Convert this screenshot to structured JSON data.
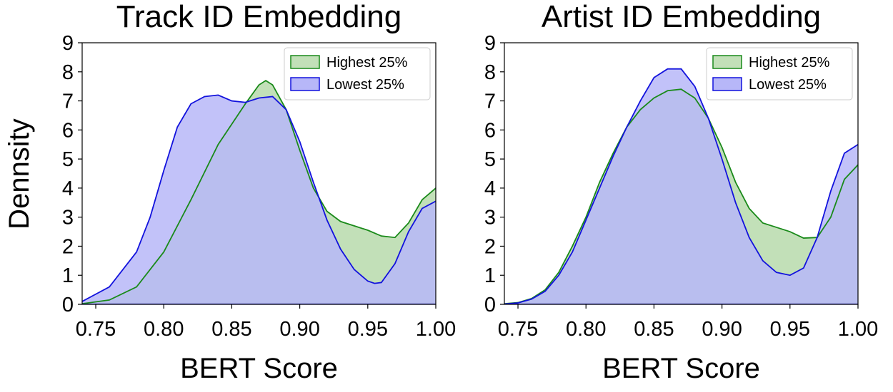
{
  "figure": {
    "ylabel": "Dennsity"
  },
  "chart_data": [
    {
      "type": "area",
      "title": "Track ID Embedding",
      "xlabel": "BERT Score",
      "ylabel": "Dennsity",
      "xlim": [
        0.74,
        1.0
      ],
      "ylim": [
        0,
        9
      ],
      "xticks": [
        "0.75",
        "0.80",
        "0.85",
        "0.90",
        "0.95",
        "1.00"
      ],
      "yticks": [
        "0",
        "1",
        "2",
        "3",
        "4",
        "5",
        "6",
        "7",
        "8",
        "9"
      ],
      "legend_position": "top-right",
      "grid": false,
      "series": [
        {
          "name": "Highest 25%",
          "fill": "#c2e0b8",
          "stroke": "#1a8a1a",
          "x": [
            0.74,
            0.76,
            0.78,
            0.8,
            0.82,
            0.84,
            0.86,
            0.87,
            0.875,
            0.88,
            0.89,
            0.9,
            0.91,
            0.92,
            0.93,
            0.94,
            0.95,
            0.96,
            0.97,
            0.98,
            0.99,
            1.0
          ],
          "y": [
            0.02,
            0.15,
            0.6,
            1.8,
            3.6,
            5.5,
            6.9,
            7.55,
            7.7,
            7.55,
            6.7,
            5.3,
            4.0,
            3.2,
            2.85,
            2.7,
            2.55,
            2.35,
            2.3,
            2.8,
            3.6,
            4.0
          ]
        },
        {
          "name": "Lowest 25%",
          "fill": "#b7b7f8",
          "stroke": "#1212dd",
          "x": [
            0.74,
            0.76,
            0.78,
            0.79,
            0.8,
            0.81,
            0.82,
            0.83,
            0.84,
            0.85,
            0.86,
            0.87,
            0.88,
            0.89,
            0.9,
            0.91,
            0.92,
            0.93,
            0.94,
            0.95,
            0.955,
            0.96,
            0.97,
            0.98,
            0.99,
            1.0
          ],
          "y": [
            0.1,
            0.6,
            1.8,
            3.0,
            4.6,
            6.1,
            6.9,
            7.15,
            7.2,
            7.0,
            6.95,
            7.1,
            7.15,
            6.7,
            5.6,
            4.2,
            2.9,
            1.9,
            1.2,
            0.8,
            0.72,
            0.75,
            1.4,
            2.5,
            3.3,
            3.55
          ]
        }
      ]
    },
    {
      "type": "area",
      "title": "Artist ID Embedding",
      "xlabel": "BERT Score",
      "ylabel": "Dennsity",
      "xlim": [
        0.74,
        1.0
      ],
      "ylim": [
        0,
        9
      ],
      "xticks": [
        "0.75",
        "0.80",
        "0.85",
        "0.90",
        "0.95",
        "1.00"
      ],
      "yticks": [
        "0",
        "1",
        "2",
        "3",
        "4",
        "5",
        "6",
        "7",
        "8",
        "9"
      ],
      "legend_position": "top-right",
      "grid": false,
      "series": [
        {
          "name": "Highest 25%",
          "fill": "#c2e0b8",
          "stroke": "#1a8a1a",
          "x": [
            0.74,
            0.75,
            0.76,
            0.77,
            0.78,
            0.79,
            0.8,
            0.81,
            0.82,
            0.83,
            0.84,
            0.85,
            0.86,
            0.87,
            0.88,
            0.89,
            0.9,
            0.91,
            0.92,
            0.93,
            0.94,
            0.95,
            0.96,
            0.97,
            0.98,
            0.99,
            1.0
          ],
          "y": [
            0.02,
            0.06,
            0.2,
            0.5,
            1.1,
            2.0,
            3.0,
            4.2,
            5.2,
            6.1,
            6.7,
            7.1,
            7.35,
            7.4,
            7.1,
            6.4,
            5.4,
            4.2,
            3.3,
            2.8,
            2.65,
            2.5,
            2.28,
            2.3,
            3.0,
            4.3,
            4.8
          ]
        },
        {
          "name": "Lowest 25%",
          "fill": "#b7b7f8",
          "stroke": "#1212dd",
          "x": [
            0.74,
            0.75,
            0.76,
            0.77,
            0.78,
            0.79,
            0.8,
            0.81,
            0.82,
            0.83,
            0.84,
            0.85,
            0.86,
            0.87,
            0.88,
            0.89,
            0.9,
            0.91,
            0.92,
            0.93,
            0.94,
            0.95,
            0.96,
            0.97,
            0.98,
            0.99,
            1.0
          ],
          "y": [
            0.01,
            0.05,
            0.18,
            0.45,
            1.0,
            1.8,
            2.9,
            4.0,
            5.1,
            6.1,
            7.0,
            7.8,
            8.1,
            8.1,
            7.5,
            6.4,
            5.0,
            3.5,
            2.3,
            1.5,
            1.1,
            1.0,
            1.25,
            2.3,
            3.9,
            5.2,
            5.5
          ]
        }
      ]
    }
  ]
}
